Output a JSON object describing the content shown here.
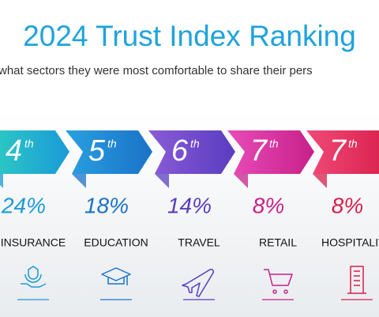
{
  "header": {
    "title": "2024 Trust Index Ranking",
    "subtitle": "what sectors they were most comfortable to share their pers"
  },
  "sectors": [
    {
      "rank": "4",
      "ordinal": "th",
      "share": "24%",
      "label": "INSURANCE"
    },
    {
      "rank": "5",
      "ordinal": "th",
      "share": "18%",
      "label": "EDUCATION"
    },
    {
      "rank": "6",
      "ordinal": "th",
      "share": "14%",
      "label": "TRAVEL"
    },
    {
      "rank": "7",
      "ordinal": "th",
      "share": "8%",
      "label": "RETAIL"
    },
    {
      "rank": "7",
      "ordinal": "th",
      "share": "8%",
      "label": "HOSPITALITY"
    }
  ]
}
